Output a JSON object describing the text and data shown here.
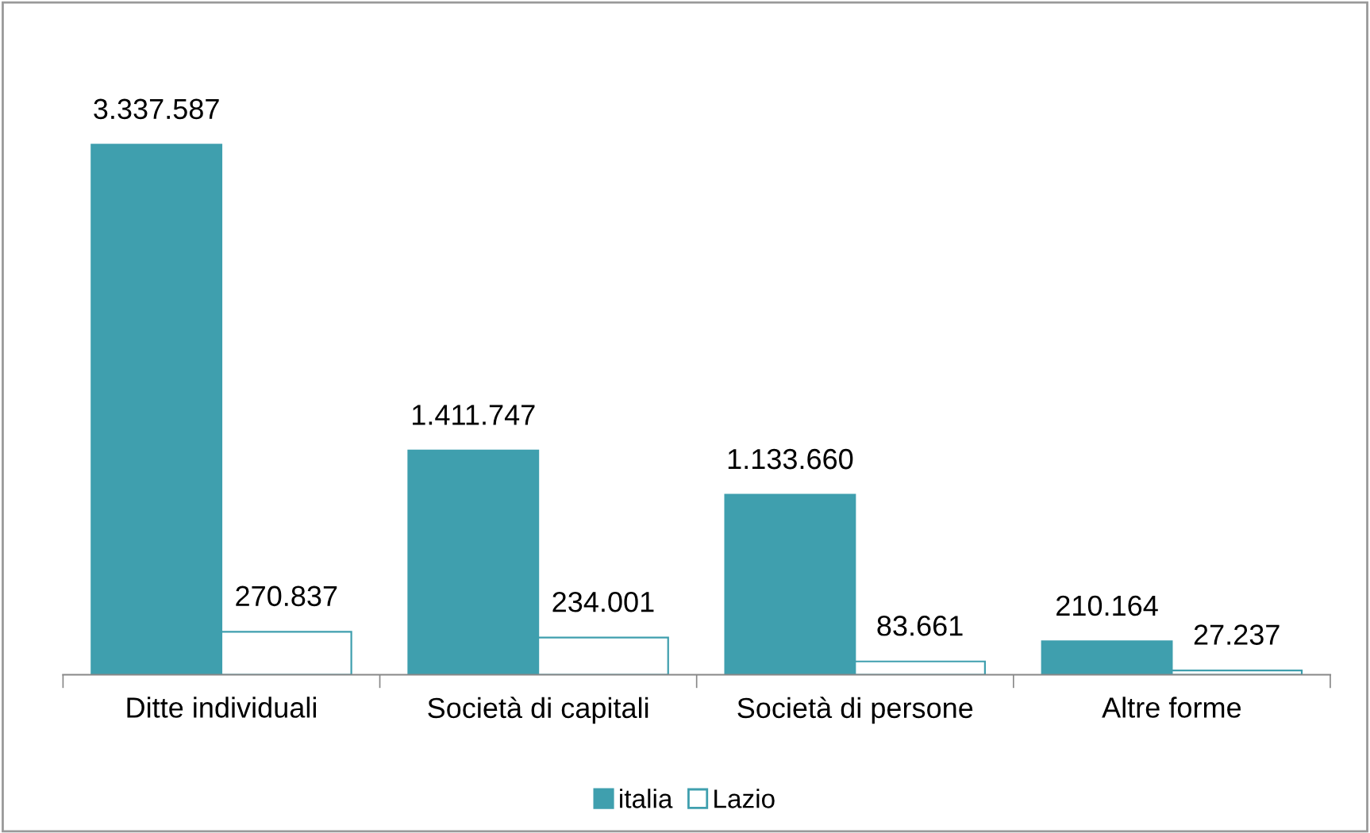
{
  "chart_data": {
    "type": "bar",
    "categories": [
      "Ditte individuali",
      "Società di capitali",
      "Società di persone",
      "Altre forme"
    ],
    "series": [
      {
        "name": "italia",
        "color": "#3f9fae",
        "values": [
          3337587,
          1411747,
          1133660,
          210164
        ],
        "value_labels": [
          "3.337.587",
          "1.411.747",
          "1.133.660",
          "210.164"
        ]
      },
      {
        "name": "Lazio",
        "color": "#ffffff",
        "values": [
          270837,
          234001,
          83661,
          27237
        ],
        "value_labels": [
          "270.837",
          "234.001",
          "83.661",
          "27.237"
        ]
      }
    ],
    "legend": "bottom",
    "grid": false
  }
}
